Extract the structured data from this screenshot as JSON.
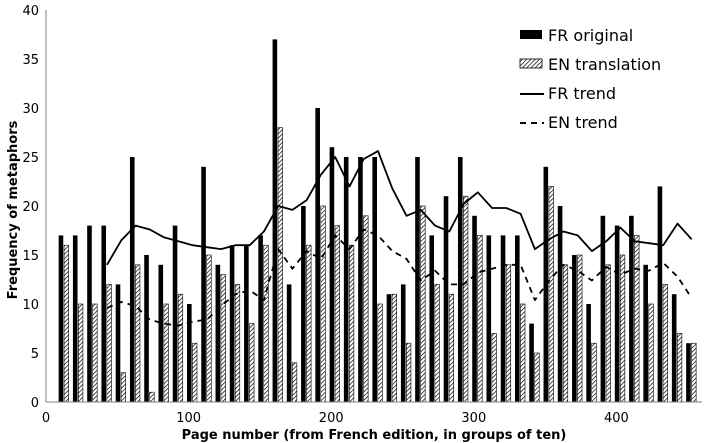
{
  "chart_data": {
    "type": "bar",
    "xlabel": "Page number (from French edition, in groups of ten)",
    "ylabel": "Frequency of metaphors",
    "xlim": [
      0,
      460
    ],
    "ylim": [
      0,
      40
    ],
    "xticks": [
      0,
      100,
      200,
      300,
      400
    ],
    "yticks": [
      0,
      5,
      10,
      15,
      20,
      25,
      30,
      35,
      40
    ],
    "legend_position": "top-right",
    "x": [
      10,
      20,
      30,
      40,
      50,
      60,
      70,
      80,
      90,
      100,
      110,
      120,
      130,
      140,
      150,
      160,
      170,
      180,
      190,
      200,
      210,
      220,
      230,
      240,
      250,
      260,
      270,
      280,
      290,
      300,
      310,
      320,
      330,
      340,
      350,
      360,
      370,
      380,
      390,
      400,
      410,
      420,
      430,
      440,
      450
    ],
    "series": [
      {
        "name": "FR original",
        "type": "bar",
        "values": [
          17,
          17,
          18,
          18,
          12,
          25,
          15,
          14,
          18,
          10,
          24,
          14,
          16,
          16,
          17,
          37,
          12,
          20,
          30,
          26,
          25,
          25,
          25,
          11,
          12,
          25,
          17,
          21,
          25,
          19,
          17,
          17,
          17,
          8,
          24,
          20,
          15,
          10,
          19,
          18,
          19,
          14,
          22,
          11,
          6
        ]
      },
      {
        "name": "EN translation",
        "type": "bar",
        "values": [
          16,
          10,
          10,
          12,
          3,
          14,
          1,
          10,
          11,
          6,
          15,
          13,
          12,
          8,
          16,
          28,
          4,
          16,
          20,
          18,
          16,
          19,
          10,
          11,
          6,
          20,
          12,
          11,
          21,
          17,
          7,
          14,
          10,
          5,
          22,
          14,
          15,
          6,
          14,
          15,
          17,
          10,
          12,
          7,
          6
        ]
      },
      {
        "name": "FR trend",
        "type": "line",
        "x": [
          40,
          50,
          60,
          70,
          80,
          90,
          100,
          110,
          120,
          130,
          140,
          150,
          160,
          170,
          180,
          190,
          200,
          210,
          220,
          230,
          240,
          250,
          260,
          270,
          280,
          290,
          300,
          310,
          320,
          330,
          340,
          350,
          360,
          370,
          380,
          390,
          400,
          410,
          420,
          430,
          440,
          450
        ],
        "values": [
          14,
          16.5,
          18,
          17.6,
          16.8,
          16.4,
          16,
          15.8,
          15.6,
          16,
          16,
          17.4,
          20,
          19.6,
          20.6,
          23.2,
          25,
          22,
          24.8,
          25.6,
          21.8,
          19,
          19.6,
          18,
          17.4,
          20.2,
          21.4,
          19.8,
          19.8,
          19.2,
          15.6,
          16.6,
          17.4,
          17,
          15.4,
          16.4,
          17.8,
          16.4,
          16.2,
          16,
          18.2,
          16.6
        ]
      },
      {
        "name": "EN trend",
        "type": "line",
        "dashed": true,
        "x": [
          40,
          50,
          60,
          70,
          80,
          90,
          100,
          110,
          120,
          130,
          140,
          150,
          160,
          170,
          180,
          190,
          200,
          210,
          220,
          230,
          240,
          250,
          260,
          270,
          280,
          290,
          300,
          310,
          320,
          330,
          340,
          350,
          360,
          370,
          380,
          390,
          400,
          410,
          420,
          430,
          440,
          450
        ],
        "values": [
          9.6,
          10.2,
          9.8,
          8.4,
          8,
          7.8,
          8.2,
          8.4,
          9.8,
          11,
          11.4,
          10.4,
          15.6,
          13.6,
          15.4,
          14.6,
          17,
          15.6,
          17.6,
          17,
          15.4,
          14.6,
          12.4,
          13.4,
          12,
          12,
          13.2,
          13.6,
          14,
          14,
          10.4,
          12.4,
          14,
          13.4,
          12.4,
          13.8,
          13,
          13.6,
          13.4,
          14.2,
          12.8,
          10.6
        ]
      }
    ]
  },
  "colors": {
    "fr_bar": "#000000",
    "en_bar_hatch": "#000000",
    "en_bar_background": "#ffffff",
    "axis": "#808080"
  }
}
